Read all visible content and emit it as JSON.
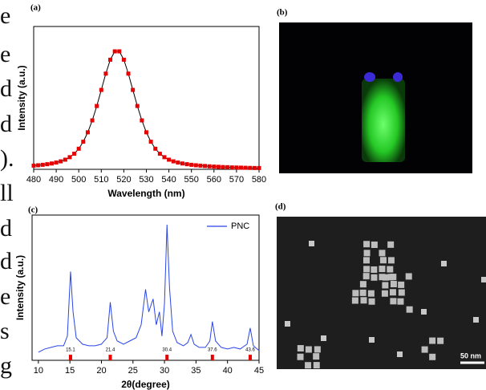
{
  "side_text": [
    "e",
    "e",
    "d",
    "d",
    ").",
    "ll",
    "d",
    "d",
    "e",
    "s",
    "g"
  ],
  "chart_data": [
    {
      "type": "line",
      "label": "(a)",
      "xlabel": "Wavelength (nm)",
      "ylabel": "Intensity (a.u.)",
      "x": [
        480,
        482,
        484,
        486,
        488,
        490,
        492,
        494,
        496,
        498,
        500,
        502,
        504,
        506,
        508,
        510,
        512,
        514,
        516,
        518,
        520,
        522,
        524,
        526,
        528,
        530,
        532,
        534,
        536,
        538,
        540,
        542,
        544,
        546,
        548,
        550,
        552,
        554,
        556,
        558,
        560,
        562,
        564,
        566,
        568,
        570,
        572,
        574,
        576,
        578,
        580
      ],
      "values": [
        0.031,
        0.034,
        0.038,
        0.043,
        0.049,
        0.057,
        0.067,
        0.081,
        0.102,
        0.131,
        0.173,
        0.232,
        0.311,
        0.411,
        0.532,
        0.667,
        0.804,
        0.921,
        0.991,
        0.991,
        0.921,
        0.804,
        0.667,
        0.532,
        0.411,
        0.311,
        0.232,
        0.173,
        0.131,
        0.102,
        0.081,
        0.067,
        0.057,
        0.049,
        0.043,
        0.038,
        0.034,
        0.031,
        0.028,
        0.025,
        0.023,
        0.021,
        0.019,
        0.018,
        0.016,
        0.015,
        0.014,
        0.013,
        0.012,
        0.011,
        0.011
      ],
      "color": "#e60000",
      "line_color": "#000000",
      "marker": "square",
      "xlim": [
        480,
        580
      ],
      "xticks": [
        480,
        490,
        500,
        510,
        520,
        530,
        540,
        550,
        560,
        570,
        580
      ],
      "ylim": [
        0,
        1.2
      ]
    },
    {
      "type": "line",
      "label": "(c)",
      "xlabel": "2θ(degree)",
      "ylabel": "Intensity (a.u.)",
      "x": [
        10,
        11,
        12,
        13,
        14,
        14.6,
        15.1,
        15.5,
        16,
        17,
        18,
        19,
        20,
        20.9,
        21.4,
        21.9,
        22.5,
        23.5,
        24.5,
        25.5,
        26.3,
        27.0,
        27.5,
        28.2,
        28.7,
        29.2,
        29.6,
        30.0,
        30.4,
        30.8,
        31.3,
        32,
        33,
        33.7,
        34.2,
        34.7,
        35.5,
        36.5,
        37.2,
        37.6,
        38.1,
        39,
        40,
        41,
        42,
        43.1,
        43.6,
        44.1,
        45
      ],
      "series": [
        {
          "name": "PNC",
          "color": "#2a45e8",
          "values": [
            0.05,
            0.07,
            0.08,
            0.09,
            0.09,
            0.15,
            0.55,
            0.3,
            0.14,
            0.1,
            0.09,
            0.09,
            0.1,
            0.14,
            0.36,
            0.18,
            0.12,
            0.1,
            0.12,
            0.14,
            0.22,
            0.44,
            0.3,
            0.38,
            0.22,
            0.3,
            0.15,
            0.35,
            0.84,
            0.45,
            0.18,
            0.11,
            0.09,
            0.11,
            0.16,
            0.1,
            0.08,
            0.08,
            0.12,
            0.24,
            0.12,
            0.08,
            0.07,
            0.08,
            0.07,
            0.1,
            0.2,
            0.09,
            0.06
          ]
        }
      ],
      "peaks": [
        15.1,
        21.4,
        30.4,
        37.6,
        43.6
      ],
      "peak_color": "#e60000",
      "xlim": [
        9,
        45
      ],
      "xticks": [
        10,
        15,
        20,
        25,
        30,
        35,
        40,
        45
      ],
      "ylim": [
        0,
        0.9
      ],
      "legend": "top-right"
    }
  ],
  "panels": {
    "b": {
      "label": "(b)"
    },
    "d": {
      "label": "(d)",
      "scale_bar": "50 nm"
    }
  }
}
